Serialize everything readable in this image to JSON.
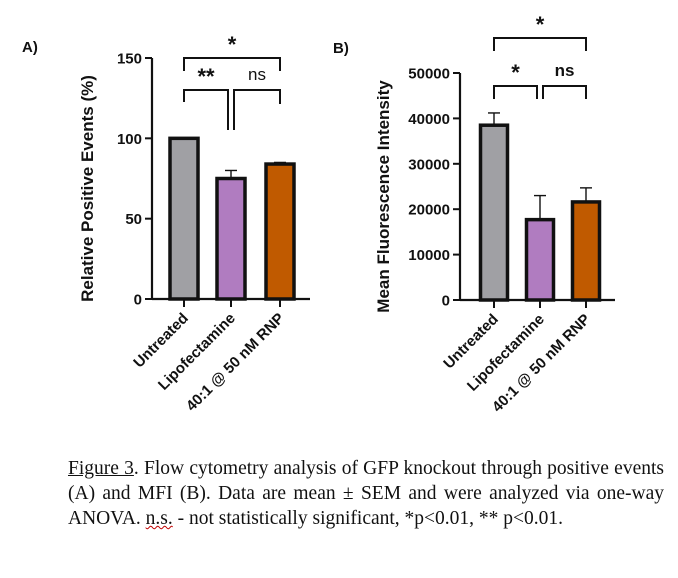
{
  "chart_data": [
    {
      "type": "bar",
      "panel_label": "A)",
      "title": "",
      "xlabel": "",
      "ylabel": "Relative Positive Events (%)",
      "ylim": [
        0,
        150
      ],
      "yticks": [
        0,
        50,
        100,
        150
      ],
      "ytick_labels": [
        "0",
        "50",
        "100",
        "150"
      ],
      "grid": false,
      "categories": [
        "Untreated",
        "Lipofectamine",
        "40:1 @ 50 nM RNP"
      ],
      "values": [
        100,
        75,
        84
      ],
      "errors": [
        0,
        5,
        1
      ],
      "colors": [
        "#a0a0a4",
        "#b07cc0",
        "#c05a00"
      ],
      "significance": [
        {
          "from": 0,
          "to": 2,
          "label": "*",
          "level": 2
        },
        {
          "from": 0,
          "to": 1,
          "label": "**",
          "level": 1
        },
        {
          "from": 1,
          "to": 2,
          "label": "ns",
          "level": 1
        }
      ]
    },
    {
      "type": "bar",
      "panel_label": "B)",
      "title": "",
      "xlabel": "",
      "ylabel": "Mean Fluorescence Intensity",
      "ylim": [
        0,
        50000
      ],
      "yticks": [
        0,
        10000,
        20000,
        30000,
        40000,
        50000
      ],
      "ytick_labels": [
        "0",
        "10000",
        "20000",
        "30000",
        "40000",
        "50000"
      ],
      "grid": false,
      "categories": [
        "Untreated",
        "Lipofectamine",
        "40:1 @ 50 nM RNP"
      ],
      "values": [
        38500,
        17700,
        21600
      ],
      "errors": [
        2700,
        5300,
        3100
      ],
      "colors": [
        "#a0a0a4",
        "#b07cc0",
        "#c05a00"
      ],
      "significance": [
        {
          "from": 0,
          "to": 2,
          "label": "*",
          "level": 2
        },
        {
          "from": 0,
          "to": 1,
          "label": "*",
          "level": 1
        },
        {
          "from": 1,
          "to": 2,
          "label": "ns",
          "level": 1
        }
      ]
    }
  ],
  "caption": {
    "figure_number": "Figure 3",
    "text_part1": ". Flow cytometry analysis of GFP knockout through positive events (A) and MFI (B). Data are mean ± SEM and were analyzed via one-way ANOVA. ",
    "ns_abbrev": "n.s.",
    "text_part2": " - not statistically significant, *p<0.01, ** p<0.01."
  }
}
